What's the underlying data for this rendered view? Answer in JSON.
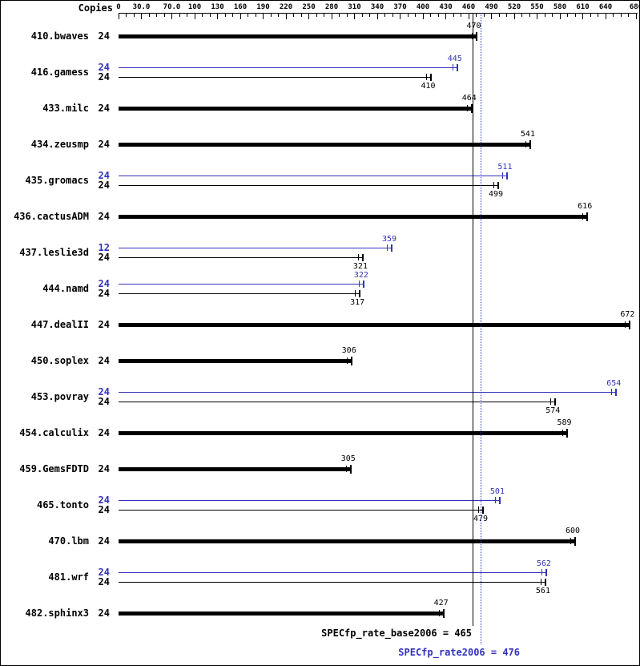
{
  "header": {
    "copies_label": "Copies"
  },
  "colors": {
    "base": "#000000",
    "peak": "#3333bb"
  },
  "chart_data": {
    "type": "bar",
    "orientation": "horizontal",
    "legend": [
      "peak (blue)",
      "base (black)"
    ],
    "axis": {
      "min": 0,
      "max": 680,
      "minor_step": 10,
      "ticks": [
        {
          "value": 0,
          "label": "0"
        },
        {
          "value": 30,
          "label": "30.0"
        },
        {
          "value": 70,
          "label": "70.0"
        },
        {
          "value": 100,
          "label": "100"
        },
        {
          "value": 130,
          "label": "130"
        },
        {
          "value": 160,
          "label": "160"
        },
        {
          "value": 190,
          "label": "190"
        },
        {
          "value": 220,
          "label": "220"
        },
        {
          "value": 250,
          "label": "250"
        },
        {
          "value": 280,
          "label": "280"
        },
        {
          "value": 310,
          "label": "310"
        },
        {
          "value": 340,
          "label": "340"
        },
        {
          "value": 370,
          "label": "370"
        },
        {
          "value": 400,
          "label": "400"
        },
        {
          "value": 430,
          "label": "430"
        },
        {
          "value": 460,
          "label": "460"
        },
        {
          "value": 490,
          "label": "490"
        },
        {
          "value": 520,
          "label": "520"
        },
        {
          "value": 550,
          "label": "550"
        },
        {
          "value": 580,
          "label": "580"
        },
        {
          "value": 610,
          "label": "610"
        },
        {
          "value": 640,
          "label": "640"
        },
        {
          "value": 680,
          "label": "680"
        }
      ]
    },
    "benchmarks": [
      {
        "name": "410.bwaves",
        "bars": [
          {
            "type": "base",
            "copies": 24,
            "value": 470
          }
        ]
      },
      {
        "name": "416.gamess",
        "bars": [
          {
            "type": "peak",
            "copies": 24,
            "value": 445
          },
          {
            "type": "base",
            "copies": 24,
            "value": 410
          }
        ]
      },
      {
        "name": "433.milc",
        "bars": [
          {
            "type": "base",
            "copies": 24,
            "value": 464
          }
        ]
      },
      {
        "name": "434.zeusmp",
        "bars": [
          {
            "type": "base",
            "copies": 24,
            "value": 541
          }
        ]
      },
      {
        "name": "435.gromacs",
        "bars": [
          {
            "type": "peak",
            "copies": 24,
            "value": 511
          },
          {
            "type": "base",
            "copies": 24,
            "value": 499
          }
        ]
      },
      {
        "name": "436.cactusADM",
        "bars": [
          {
            "type": "base",
            "copies": 24,
            "value": 616
          }
        ]
      },
      {
        "name": "437.leslie3d",
        "bars": [
          {
            "type": "peak",
            "copies": 12,
            "value": 359
          },
          {
            "type": "base",
            "copies": 24,
            "value": 321
          }
        ]
      },
      {
        "name": "444.namd",
        "bars": [
          {
            "type": "peak",
            "copies": 24,
            "value": 322
          },
          {
            "type": "base",
            "copies": 24,
            "value": 317
          }
        ]
      },
      {
        "name": "447.dealII",
        "bars": [
          {
            "type": "base",
            "copies": 24,
            "value": 672
          }
        ]
      },
      {
        "name": "450.soplex",
        "bars": [
          {
            "type": "base",
            "copies": 24,
            "value": 306
          }
        ]
      },
      {
        "name": "453.povray",
        "bars": [
          {
            "type": "peak",
            "copies": 24,
            "value": 654
          },
          {
            "type": "base",
            "copies": 24,
            "value": 574
          }
        ]
      },
      {
        "name": "454.calculix",
        "bars": [
          {
            "type": "base",
            "copies": 24,
            "value": 589
          }
        ]
      },
      {
        "name": "459.GemsFDTD",
        "bars": [
          {
            "type": "base",
            "copies": 24,
            "value": 305
          }
        ]
      },
      {
        "name": "465.tonto",
        "bars": [
          {
            "type": "peak",
            "copies": 24,
            "value": 501
          },
          {
            "type": "base",
            "copies": 24,
            "value": 479
          }
        ]
      },
      {
        "name": "470.lbm",
        "bars": [
          {
            "type": "base",
            "copies": 24,
            "value": 600
          }
        ]
      },
      {
        "name": "481.wrf",
        "bars": [
          {
            "type": "peak",
            "copies": 24,
            "value": 562
          },
          {
            "type": "base",
            "copies": 24,
            "value": 561
          }
        ]
      },
      {
        "name": "482.sphinx3",
        "bars": [
          {
            "type": "base",
            "copies": 24,
            "value": 427
          }
        ]
      }
    ],
    "reference": {
      "base": 465,
      "peak": 476
    }
  },
  "footer": {
    "base_label": "SPECfp_rate_base2006 = 465",
    "peak_label": "SPECfp_rate2006 = 476"
  }
}
